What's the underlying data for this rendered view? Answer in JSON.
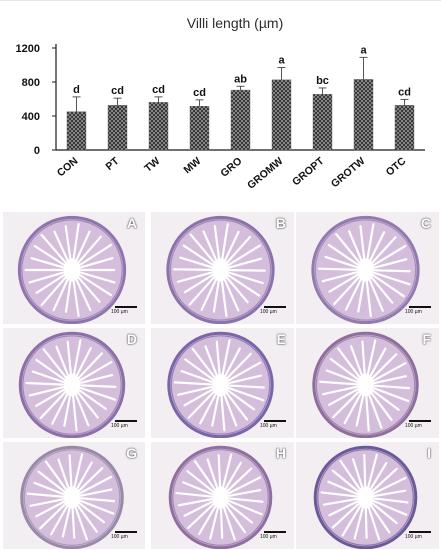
{
  "chart_data": {
    "type": "bar",
    "title": "Villi length (µm)",
    "categories": [
      "CON",
      "PT",
      "TW",
      "MW",
      "GRO",
      "GROMW",
      "GROPT",
      "GROTW",
      "OTC"
    ],
    "series": [
      {
        "values": [
          450,
          525,
          560,
          515,
          705,
          825,
          655,
          830,
          525
        ]
      }
    ],
    "error": [
      175,
      85,
      65,
      75,
      45,
      145,
      75,
      260,
      70
    ],
    "significance_letters": [
      "d",
      "cd",
      "cd",
      "cd",
      "ab",
      "a",
      "bc",
      "a",
      "cd"
    ],
    "yticks": [
      0,
      400,
      800,
      1200
    ],
    "ylim": [
      0,
      1200
    ],
    "grid": false,
    "bar_pattern": "crosshatch"
  },
  "panels": [
    {
      "letter": "A",
      "scale": "100 µm"
    },
    {
      "letter": "B",
      "scale": "100 µm"
    },
    {
      "letter": "C",
      "scale": "100 µm"
    },
    {
      "letter": "D",
      "scale": "100 µm"
    },
    {
      "letter": "E",
      "scale": "100 µm"
    },
    {
      "letter": "F",
      "scale": "100 µm"
    },
    {
      "letter": "G",
      "scale": "100 µm"
    },
    {
      "letter": "H",
      "scale": "100 µm"
    },
    {
      "letter": "I",
      "scale": "100 µm"
    }
  ],
  "colors": {
    "bar_fill": "#8c8c8c",
    "bar_hatch": "#2a2a2a",
    "axis": "#1a1a1a",
    "title": "#2b2b2b",
    "panel_background": "#f2eef1",
    "tissue_stroke": "#8a6fa8",
    "tissue_fill": "#cdb5d6",
    "lumen": "#ffffff"
  }
}
